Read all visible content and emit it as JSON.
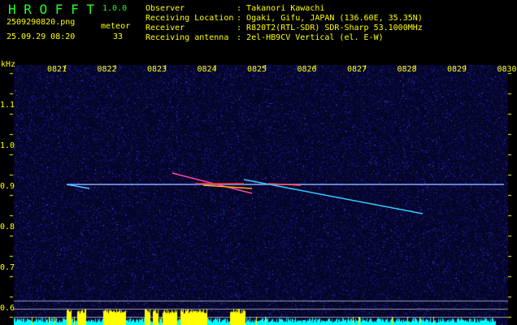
{
  "app": {
    "name": "H R O F F T",
    "version": "1.0.0"
  },
  "file": {
    "name": "2509290820.png",
    "datetime": "25.09.29 08:20"
  },
  "meteor": {
    "label": "meteor",
    "count": "33"
  },
  "info": [
    {
      "label": "Observer",
      "value": "Takanori Kawachi"
    },
    {
      "label": "Receiving Location",
      "value": "Ogaki, Gifu, JAPAN (136.60E, 35.35N)"
    },
    {
      "label": "Receiver",
      "value": "R820T2(RTL-SDR) SDR-Sharp 53.1000MHz"
    },
    {
      "label": "Receiving antenna",
      "value": "2el-HB9CV Vertical (el. E-W)"
    }
  ],
  "axis": {
    "unit": "kHz",
    "y_ticks": [
      "1.1",
      "1.0",
      "0.9",
      "0.8",
      "0.7",
      "0.6"
    ],
    "x_ticks": [
      "0821",
      "0822",
      "0823",
      "0824",
      "0825",
      "0826",
      "0827",
      "0828",
      "0829",
      "0830"
    ]
  },
  "colors": {
    "text": "#ffff00",
    "title": "#22ff22",
    "noise": "#1a1a8c",
    "histogram": "#00ffff",
    "meteor_bar": "#ffff00"
  }
}
